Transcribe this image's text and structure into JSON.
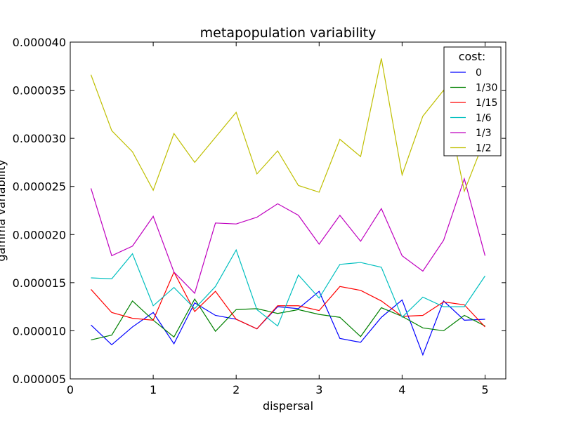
{
  "chart_data": {
    "type": "line",
    "title": "metapopulation variability",
    "xlabel": "dispersal",
    "ylabel": "gamma variability",
    "xlim": [
      0,
      5.25
    ],
    "ylim": [
      5e-06,
      4e-05
    ],
    "xticks": [
      0,
      1,
      2,
      3,
      4,
      5
    ],
    "xtick_labels": [
      "0",
      "1",
      "2",
      "3",
      "4",
      "5"
    ],
    "yticks": [
      5e-06,
      1e-05,
      1.5e-05,
      2e-05,
      2.5e-05,
      3e-05,
      3.5e-05,
      4e-05
    ],
    "ytick_labels": [
      "0.000005",
      "0.000010",
      "0.000015",
      "0.000020",
      "0.000025",
      "0.000030",
      "0.000035",
      "0.000040"
    ],
    "grid": false,
    "legend_title": "cost:",
    "legend_position": "top-right",
    "x": [
      0.25,
      0.5,
      0.75,
      1.0,
      1.25,
      1.5,
      1.75,
      2.0,
      2.25,
      2.5,
      2.75,
      3.0,
      3.25,
      3.5,
      3.75,
      4.0,
      4.25,
      4.5,
      4.75,
      5.0
    ],
    "series": [
      {
        "name": "0",
        "color": "#0000ff",
        "values": [
          1.06e-05,
          8.55e-06,
          1.04e-05,
          1.19e-05,
          8.65e-06,
          1.29e-05,
          1.16e-05,
          1.12e-05,
          1.02e-05,
          1.25e-05,
          1.23e-05,
          1.41e-05,
          9.2e-06,
          8.8e-06,
          1.14e-05,
          1.32e-05,
          7.5e-06,
          1.31e-05,
          1.11e-05,
          1.12e-05
        ]
      },
      {
        "name": "1/30",
        "color": "#008000",
        "values": [
          9.05e-06,
          9.55e-06,
          1.31e-05,
          1.11e-05,
          9.35e-06,
          1.33e-05,
          9.95e-06,
          1.22e-05,
          1.23e-05,
          1.18e-05,
          1.22e-05,
          1.17e-05,
          1.14e-05,
          9.4e-06,
          1.24e-05,
          1.15e-05,
          1.03e-05,
          1e-05,
          1.16e-05,
          1.05e-05
        ]
      },
      {
        "name": "1/15",
        "color": "#ff0000",
        "values": [
          1.43e-05,
          1.19e-05,
          1.13e-05,
          1.11e-05,
          1.61e-05,
          1.2e-05,
          1.41e-05,
          1.12e-05,
          1.02e-05,
          1.26e-05,
          1.26e-05,
          1.21e-05,
          1.46e-05,
          1.42e-05,
          1.31e-05,
          1.15e-05,
          1.16e-05,
          1.3e-05,
          1.27e-05,
          1.04e-05
        ]
      },
      {
        "name": "1/6",
        "color": "#00bfbf",
        "values": [
          1.55e-05,
          1.54e-05,
          1.8e-05,
          1.26e-05,
          1.45e-05,
          1.23e-05,
          1.46e-05,
          1.84e-05,
          1.22e-05,
          1.05e-05,
          1.58e-05,
          1.34e-05,
          1.69e-05,
          1.71e-05,
          1.66e-05,
          1.14e-05,
          1.35e-05,
          1.25e-05,
          1.25e-05,
          1.57e-05
        ]
      },
      {
        "name": "1/3",
        "color": "#bf00bf",
        "values": [
          2.48e-05,
          1.78e-05,
          1.88e-05,
          2.19e-05,
          1.61e-05,
          1.39e-05,
          2.12e-05,
          2.11e-05,
          2.18e-05,
          2.32e-05,
          2.2e-05,
          1.9e-05,
          2.2e-05,
          1.93e-05,
          2.27e-05,
          1.78e-05,
          1.62e-05,
          1.94e-05,
          2.58e-05,
          1.78e-05
        ]
      },
      {
        "name": "1/2",
        "color": "#bfbf00",
        "values": [
          3.66e-05,
          3.08e-05,
          2.86e-05,
          2.46e-05,
          3.05e-05,
          2.75e-05,
          3.01e-05,
          3.27e-05,
          2.63e-05,
          2.87e-05,
          2.51e-05,
          2.44e-05,
          2.99e-05,
          2.81e-05,
          3.83e-05,
          2.62e-05,
          3.23e-05,
          3.5e-05,
          2.45e-05,
          3e-05
        ]
      }
    ]
  }
}
